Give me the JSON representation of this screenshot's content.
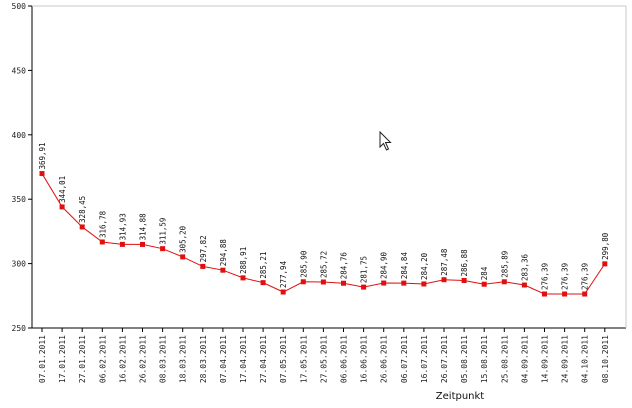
{
  "chart_data": {
    "type": "line",
    "title": "",
    "xlabel": "Zeitpunkt",
    "ylabel": "",
    "ylim": [
      250,
      500
    ],
    "yticks": [
      250,
      300,
      350,
      400,
      450,
      500
    ],
    "yticks_labels": [
      "250",
      "300",
      "350",
      "400",
      "450",
      "500"
    ],
    "grid": false,
    "series": [
      {
        "color": "#e01010",
        "x": [
          "07.01.2011",
          "17.01.2011",
          "27.01.2011",
          "06.02.2011",
          "16.02.2011",
          "26.02.2011",
          "08.03.2011",
          "18.03.2011",
          "28.03.2011",
          "07.04.2011",
          "17.04.2011",
          "27.04.2011",
          "07.05.2011",
          "17.05.2011",
          "27.05.2011",
          "06.06.2011",
          "16.06.2011",
          "26.06.2011",
          "06.07.2011",
          "16.07.2011",
          "26.07.2011",
          "05.08.2011",
          "15.08.2011",
          "25.08.2011",
          "04.09.2011",
          "14.09.2011",
          "24.09.2011",
          "04.10.2011",
          "08.10.2011"
        ],
        "values": [
          369.91,
          344.01,
          328.45,
          316.78,
          314.93,
          314.88,
          311.59,
          305.2,
          297.82,
          294.88,
          288.91,
          285.21,
          277.94,
          285.9,
          285.72,
          284.76,
          281.75,
          284.9,
          284.84,
          284.2,
          287.48,
          286.88,
          284,
          285.89,
          283.36,
          276.39,
          276.39,
          276.39,
          299.8
        ],
        "labels": [
          "369,91",
          "344,01",
          "328,45",
          "316,78",
          "314,93",
          "314,88",
          "311,59",
          "305,20",
          "297,82",
          "294,88",
          "288,91",
          "285,21",
          "277,94",
          "285,90",
          "285,72",
          "284,76",
          "281,75",
          "284,90",
          "284,84",
          "284,20",
          "287,48",
          "286,88",
          "284",
          "285,89",
          "283,36",
          "276,39",
          "276,39",
          "276,39",
          "299,80"
        ]
      }
    ]
  }
}
